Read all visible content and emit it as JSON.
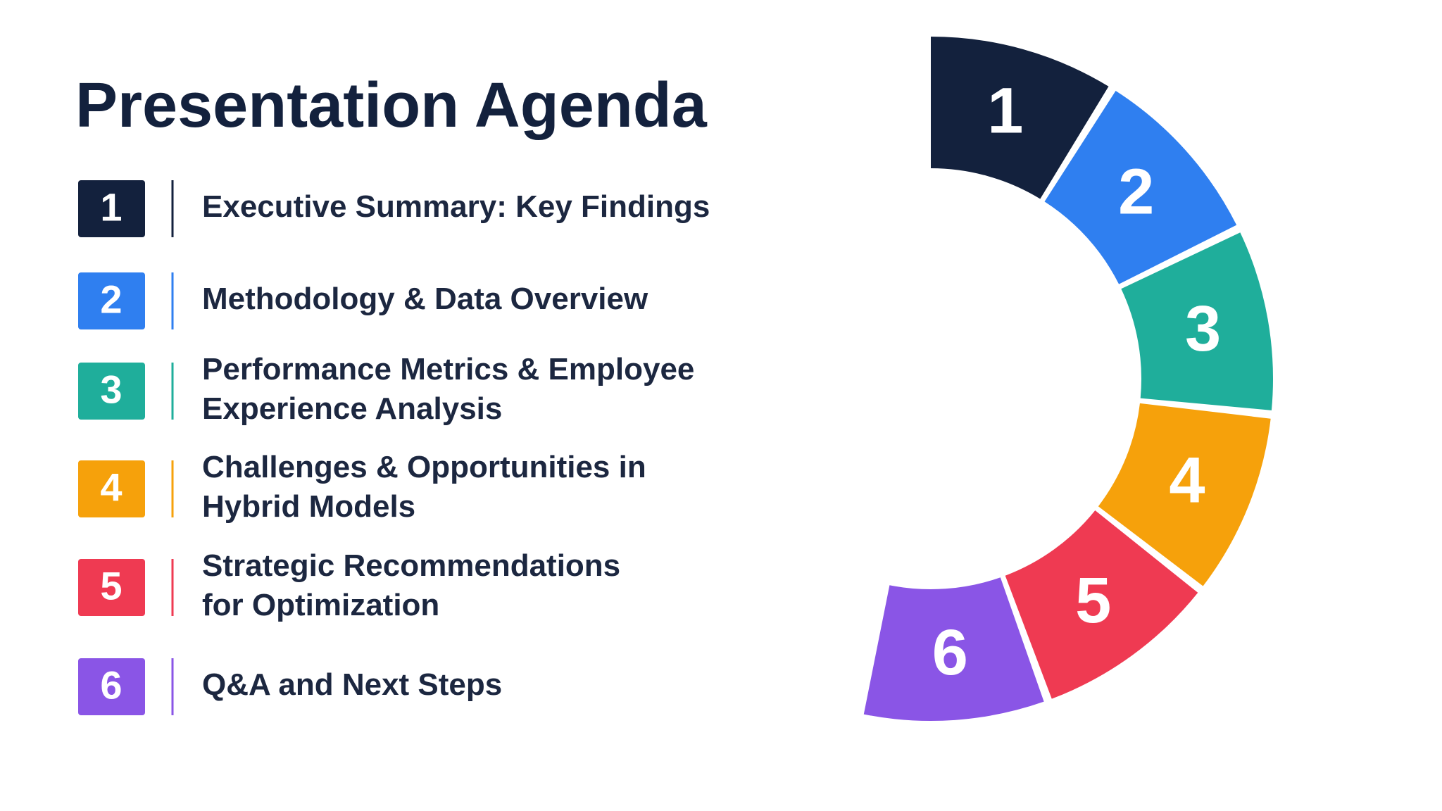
{
  "title": "Presentation Agenda",
  "items": [
    {
      "number": "1",
      "color": "#13213d",
      "lines": [
        "Executive Summary: Key Findings"
      ]
    },
    {
      "number": "2",
      "color": "#2f7ff0",
      "lines": [
        "Methodology & Data Overview"
      ]
    },
    {
      "number": "3",
      "color": "#1fae9b",
      "lines": [
        "Performance Metrics & Employee",
        "Experience Analysis"
      ]
    },
    {
      "number": "4",
      "color": "#f6a10b",
      "lines": [
        "Challenges & Opportunities in",
        "Hybrid Models"
      ]
    },
    {
      "number": "5",
      "color": "#ef3a52",
      "lines": [
        "Strategic Recommendations",
        "for Optimization"
      ]
    },
    {
      "number": "6",
      "color": "#8a55e6",
      "lines": [
        "Q&A and Next Steps"
      ]
    }
  ]
}
